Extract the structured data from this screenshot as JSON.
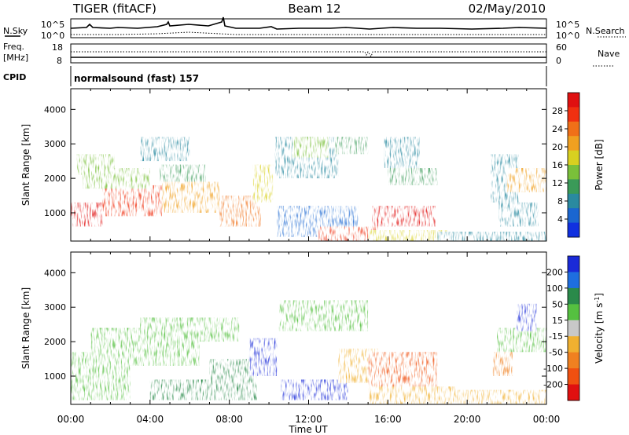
{
  "header": {
    "radar": "TIGER (fitACF)",
    "beam": "Beam 12",
    "date": "02/May/2010"
  },
  "strip": {
    "nsky_label": "N.Sky",
    "nsky_ticks": [
      "10^5",
      "10^0"
    ],
    "nsearch_label": "N.Search",
    "freq_label_1": "Freq.",
    "freq_label_2": "[MHz]",
    "freq_ticks": [
      "18",
      "8"
    ],
    "nave_label": "Nave",
    "nave_ticks": [
      "60",
      "0"
    ],
    "cpid_label": "CPID",
    "cpid_text": "normalsound (fast) 157"
  },
  "xaxis": {
    "label": "Time UT",
    "ticks": [
      "00:00",
      "04:00",
      "08:00",
      "12:00",
      "16:00",
      "20:00",
      "00:00"
    ]
  },
  "chart_data": [
    {
      "type": "heatmap",
      "parameter": "power",
      "x_range_hours": [
        0,
        24
      ],
      "ylabel": "Slant Range [km]",
      "yticks": [
        1000,
        2000,
        3000,
        4000
      ],
      "ylim": [
        180,
        4600
      ],
      "colorbar": {
        "label": "Power [dB]",
        "ticks": [
          4,
          8,
          12,
          16,
          20,
          24,
          28
        ],
        "range": [
          0,
          32
        ],
        "colors": [
          "#1030e0",
          "#1a66d0",
          "#2a8aa0",
          "#3a9a58",
          "#7ac03a",
          "#d8d020",
          "#f0a020",
          "#f07018",
          "#f03010",
          "#e01010"
        ]
      },
      "regions": [
        {
          "t": [
            0.0,
            1.6
          ],
          "r": [
            600,
            1300
          ],
          "value": 30
        },
        {
          "t": [
            1.6,
            4.6
          ],
          "r": [
            900,
            1800
          ],
          "value": 27
        },
        {
          "t": [
            4.6,
            7.5
          ],
          "r": [
            1000,
            1900
          ],
          "value": 22
        },
        {
          "t": [
            7.5,
            9.6
          ],
          "r": [
            600,
            1500
          ],
          "value": 25
        },
        {
          "t": [
            9.2,
            10.2
          ],
          "r": [
            1300,
            2400
          ],
          "value": 18
        },
        {
          "t": [
            0.6,
            4.0
          ],
          "r": [
            1700,
            2300
          ],
          "value": 14
        },
        {
          "t": [
            4.5,
            6.8
          ],
          "r": [
            1900,
            2400
          ],
          "value": 12
        },
        {
          "t": [
            0.3,
            2.2
          ],
          "r": [
            2100,
            2700
          ],
          "value": 15
        },
        {
          "t": [
            3.5,
            6.0
          ],
          "r": [
            2500,
            3200
          ],
          "value": 9
        },
        {
          "t": [
            10.3,
            13.5
          ],
          "r": [
            2000,
            3200
          ],
          "value": 7
        },
        {
          "t": [
            11.2,
            13.0
          ],
          "r": [
            2600,
            3200
          ],
          "value": 13
        },
        {
          "t": [
            13.3,
            15.0
          ],
          "r": [
            2700,
            3200
          ],
          "value": 11
        },
        {
          "t": [
            15.8,
            17.6
          ],
          "r": [
            2300,
            3200
          ],
          "value": 9
        },
        {
          "t": [
            16.0,
            18.5
          ],
          "r": [
            1800,
            2300
          ],
          "value": 11
        },
        {
          "t": [
            10.4,
            14.5
          ],
          "r": [
            300,
            1200
          ],
          "value": 5
        },
        {
          "t": [
            12.5,
            15.5
          ],
          "r": [
            180,
            600
          ],
          "value": 26
        },
        {
          "t": [
            15.2,
            18.4
          ],
          "r": [
            600,
            1200
          ],
          "value": 30
        },
        {
          "t": [
            15.0,
            19.0
          ],
          "r": [
            180,
            500
          ],
          "value": 18
        },
        {
          "t": [
            18.5,
            24.0
          ],
          "r": [
            180,
            450
          ],
          "value": 8
        },
        {
          "t": [
            21.2,
            22.6
          ],
          "r": [
            1300,
            2700
          ],
          "value": 9
        },
        {
          "t": [
            22.0,
            24.0
          ],
          "r": [
            1600,
            2300
          ],
          "value": 21
        },
        {
          "t": [
            21.6,
            23.6
          ],
          "r": [
            600,
            1300
          ],
          "value": 7
        }
      ]
    },
    {
      "type": "heatmap",
      "parameter": "velocity",
      "x_range_hours": [
        0,
        24
      ],
      "ylabel": "Slant Range [km]",
      "yticks": [
        1000,
        2000,
        3000,
        4000
      ],
      "ylim": [
        180,
        4600
      ],
      "colorbar": {
        "label": "Velocity [m s^-1]",
        "ticks": [
          200,
          100,
          50,
          15,
          -15,
          -50,
          -100,
          -200
        ],
        "bins": [
          250,
          150,
          75,
          32,
          0,
          -32,
          -75,
          -150,
          -250
        ],
        "colors": [
          "#1a2ad8",
          "#1e6ee0",
          "#2a8a4a",
          "#55c040",
          "#c8c8c8",
          "#f0b030",
          "#f08020",
          "#f05010",
          "#e01010"
        ]
      },
      "regions": [
        {
          "t": [
            0.0,
            3.0
          ],
          "r": [
            300,
            1700
          ],
          "value": 0
        },
        {
          "t": [
            1.0,
            6.5
          ],
          "r": [
            1300,
            2400
          ],
          "value": 0
        },
        {
          "t": [
            3.5,
            8.5
          ],
          "r": [
            2000,
            2700
          ],
          "value": 0
        },
        {
          "t": [
            4.0,
            7.0
          ],
          "r": [
            300,
            900
          ],
          "value": 40
        },
        {
          "t": [
            7.0,
            9.4
          ],
          "r": [
            300,
            1500
          ],
          "value": 60
        },
        {
          "t": [
            9.0,
            10.4
          ],
          "r": [
            1000,
            2100
          ],
          "value": 250
        },
        {
          "t": [
            10.6,
            14.0
          ],
          "r": [
            300,
            900
          ],
          "value": 160
        },
        {
          "t": [
            10.5,
            15.0
          ],
          "r": [
            2300,
            3200
          ],
          "value": 0
        },
        {
          "t": [
            13.5,
            15.5
          ],
          "r": [
            800,
            1800
          ],
          "value": -40
        },
        {
          "t": [
            15.0,
            18.5
          ],
          "r": [
            600,
            1700
          ],
          "value": -160
        },
        {
          "t": [
            15.0,
            19.5
          ],
          "r": [
            200,
            700
          ],
          "value": -60
        },
        {
          "t": [
            19.5,
            24.0
          ],
          "r": [
            200,
            600
          ],
          "value": -45
        },
        {
          "t": [
            21.5,
            24.0
          ],
          "r": [
            1700,
            2400
          ],
          "value": 0
        },
        {
          "t": [
            21.3,
            22.3
          ],
          "r": [
            1000,
            1700
          ],
          "value": -120
        },
        {
          "t": [
            22.5,
            23.5
          ],
          "r": [
            2300,
            3100
          ],
          "value": 240
        }
      ]
    }
  ]
}
